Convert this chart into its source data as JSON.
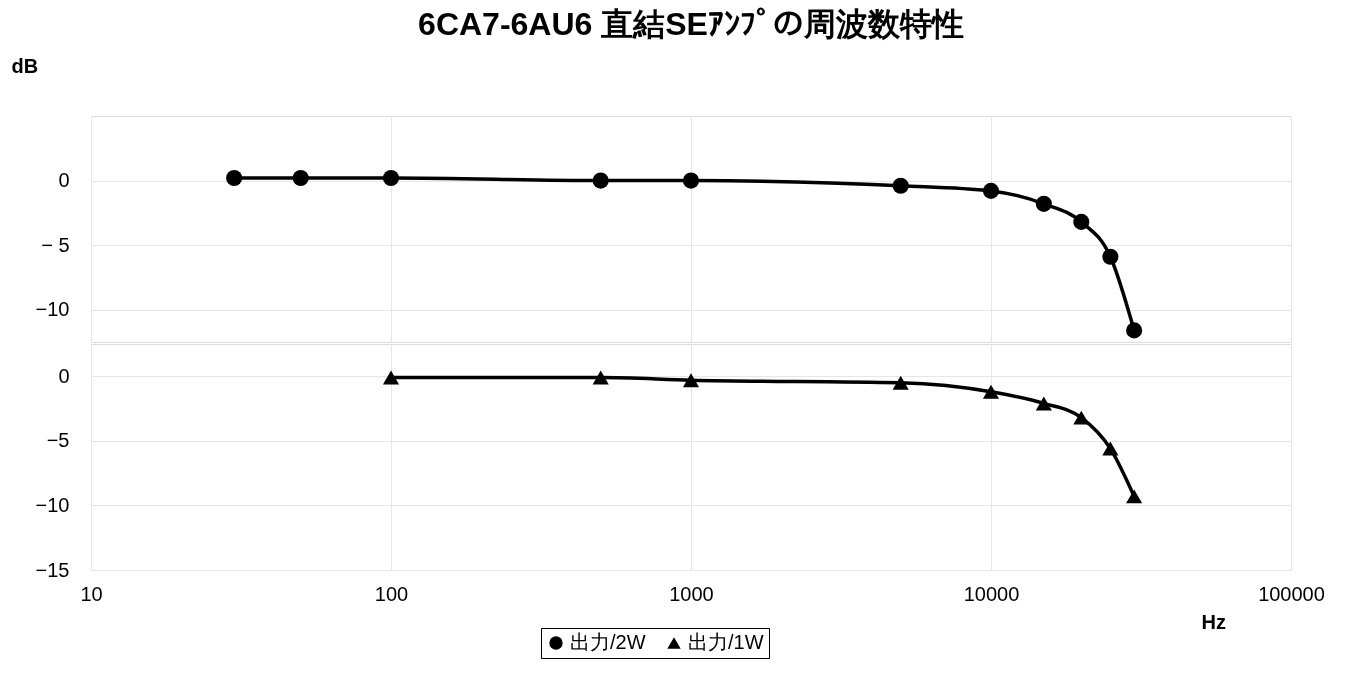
{
  "chart_data": [
    {
      "type": "line",
      "title": "6CA7-6AU6 直結SEｱﾝﾌﾟの周波数特性",
      "ylabel": "dB",
      "log": "x",
      "xlim": [
        10,
        100000
      ],
      "xticks": [
        10,
        100,
        1000,
        10000,
        100000
      ],
      "tick_labels": "y",
      "ylim": [
        -12.5,
        5
      ],
      "yticks": [
        -10,
        {
          "value": -5,
          "label": "− 5"
        },
        0
      ],
      "grid": true,
      "line_style": "solid",
      "series": [
        {
          "name": "出力/2W",
          "color": "#000000",
          "marker": "circle",
          "x": [
            30,
            50,
            100,
            500,
            1000,
            5000,
            10000,
            15000,
            20000,
            25000,
            30000
          ],
          "values": [
            0.2,
            0.2,
            0.2,
            0.0,
            0.0,
            -0.4,
            -0.8,
            -1.8,
            -3.2,
            -5.9,
            -11.6
          ]
        }
      ]
    },
    {
      "type": "line",
      "xlabel": "Hz",
      "log": "x",
      "xlim": [
        10,
        100000
      ],
      "xticks": [
        10,
        100,
        1000,
        10000,
        100000
      ],
      "ylim": [
        -15,
        2.5
      ],
      "yticks": [
        -15,
        -10,
        -5,
        0
      ],
      "grid": true,
      "legend": "bottom",
      "line_style": "solid",
      "series": [
        {
          "name": "出力/1W",
          "color": "#000000",
          "marker": "triangle",
          "x": [
            100,
            500,
            1000,
            5000,
            10000,
            15000,
            20000,
            25000,
            30000
          ],
          "values": [
            -0.1,
            -0.1,
            -0.3,
            -0.5,
            -1.2,
            -2.1,
            -3.2,
            -5.6,
            -9.3
          ]
        }
      ]
    }
  ]
}
